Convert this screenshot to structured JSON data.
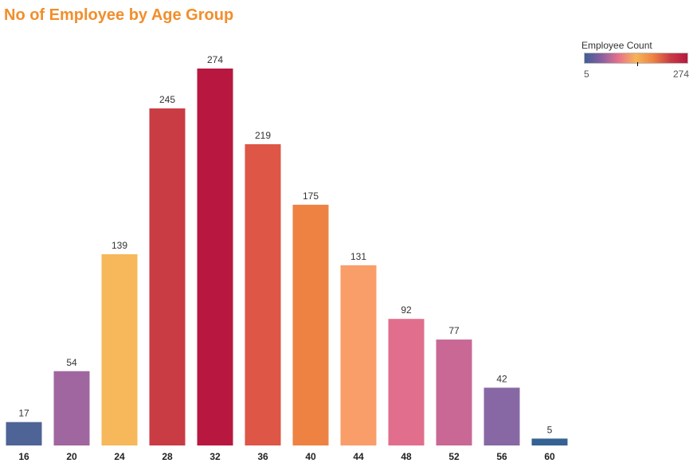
{
  "chart_data": {
    "type": "bar",
    "title": "No of Employee by Age Group",
    "xlabel": "",
    "ylabel": "",
    "categories": [
      "16",
      "20",
      "24",
      "28",
      "32",
      "36",
      "40",
      "44",
      "48",
      "52",
      "56",
      "60"
    ],
    "values": [
      17,
      54,
      139,
      245,
      274,
      219,
      175,
      131,
      92,
      77,
      42,
      5
    ],
    "colors": [
      "#4E6496",
      "#A066A0",
      "#F6B85A",
      "#C93C44",
      "#B81840",
      "#DD5646",
      "#EE8243",
      "#F99E68",
      "#E16E8C",
      "#C96894",
      "#8768A4",
      "#356292"
    ],
    "ylim": [
      0,
      274
    ],
    "grid": false,
    "data_labels": true,
    "legend": {
      "title": "Employee Count",
      "min": "5",
      "max": "274",
      "placement": "top-right",
      "gradient": [
        "#3E5F96",
        "#8A5FA0",
        "#E9718A",
        "#F7B456",
        "#EE8243",
        "#C93C44",
        "#B81840"
      ]
    }
  }
}
